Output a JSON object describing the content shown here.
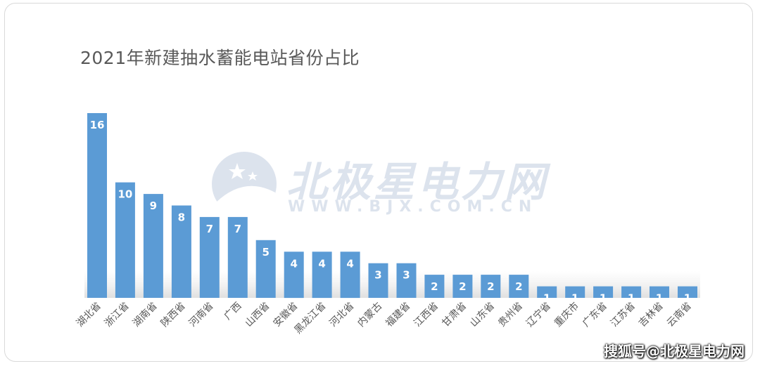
{
  "chart_data": {
    "type": "bar",
    "title": "2021年新建抽水蓄能电站省份占比",
    "categories": [
      "湖北省",
      "浙江省",
      "湖南省",
      "陕西省",
      "河南省",
      "广西",
      "山西省",
      "安徽省",
      "黑龙江省",
      "河北省",
      "内蒙古",
      "福建省",
      "江西省",
      "甘肃省",
      "山东省",
      "贵州省",
      "辽宁省",
      "重庆市",
      "广东省",
      "江苏省",
      "吉林省",
      "云南省"
    ],
    "values": [
      16,
      10,
      9,
      8,
      7,
      7,
      5,
      4,
      4,
      4,
      3,
      3,
      2,
      2,
      2,
      2,
      1,
      1,
      1,
      1,
      1,
      1
    ],
    "data_labels": [
      "16",
      "10",
      "9",
      "8",
      "7",
      "7",
      "5",
      "4",
      "4",
      "4",
      "3",
      "3",
      "2",
      "2",
      "2",
      "2",
      "1",
      "1",
      "1",
      "1",
      "1",
      "1"
    ],
    "bar_color": "#5b9bd5",
    "ylim": [
      0,
      16
    ],
    "grid": false,
    "legend": "none"
  },
  "watermark": {
    "name": "北极星电力网",
    "url": "WWW.BJX.COM.CN"
  },
  "source_credit": "搜狐号@北极星电力网"
}
